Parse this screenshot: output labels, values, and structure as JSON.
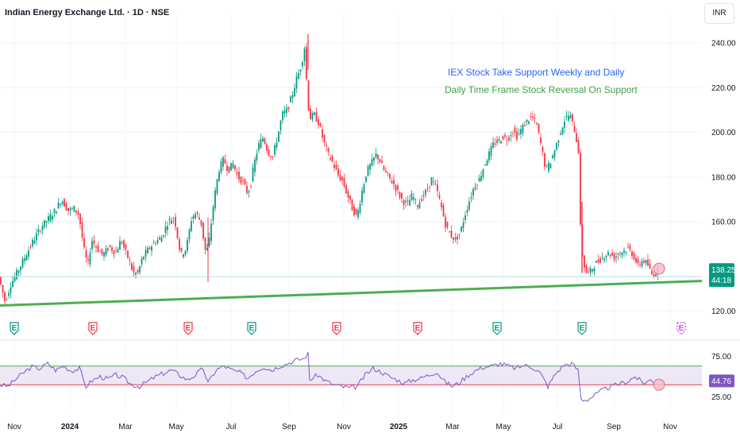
{
  "header": {
    "title": "Indian Energy Exchange Ltd. · 1D · NSE",
    "currency": "INR"
  },
  "colors": {
    "up": "#089981",
    "down": "#f23645",
    "support": "#4caf50",
    "rsi_line": "#7e57c2",
    "rsi_band": "#ede7f6",
    "rsi_upper": "#4caf50",
    "rsi_lower": "#f23645",
    "annotation_blue": "#2962ff",
    "annotation_green": "#43a047"
  },
  "annotations": {
    "line1": "IEX Stock Take Support Weekly and Daily",
    "line2": "Daily Time Frame Stock Reversal On Support"
  },
  "chart_data": {
    "type": "candlestick",
    "price_axis": {
      "min": 117,
      "max": 245,
      "ticks": [
        "240.00",
        "220.00",
        "200.00",
        "180.00",
        "160.00",
        "120.00"
      ],
      "tick_values": [
        240,
        220,
        200,
        180,
        160,
        120
      ]
    },
    "x_ticks": [
      {
        "label": "Nov",
        "bold": false
      },
      {
        "label": "2024",
        "bold": true
      },
      {
        "label": "Mar",
        "bold": false
      },
      {
        "label": "May",
        "bold": false
      },
      {
        "label": "Jul",
        "bold": false
      },
      {
        "label": "Sep",
        "bold": false
      },
      {
        "label": "Nov",
        "bold": false
      },
      {
        "label": "2025",
        "bold": true
      },
      {
        "label": "Mar",
        "bold": false
      },
      {
        "label": "May",
        "bold": false
      },
      {
        "label": "Jul",
        "bold": false
      },
      {
        "label": "Sep",
        "bold": false
      },
      {
        "label": "Nov",
        "bold": false
      }
    ],
    "last_price": {
      "value": "138.25",
      "countdown": "44:18"
    },
    "support_line": {
      "start_price": 122.5,
      "end_price": 133.5
    },
    "price_path": [
      [
        0,
        137
      ],
      [
        4,
        131
      ],
      [
        9,
        124
      ],
      [
        16,
        132
      ],
      [
        28,
        140
      ],
      [
        42,
        150
      ],
      [
        55,
        158
      ],
      [
        65,
        162
      ],
      [
        72,
        165
      ],
      [
        80,
        170
      ],
      [
        88,
        165
      ],
      [
        96,
        166
      ],
      [
        102,
        163
      ],
      [
        108,
        148
      ],
      [
        113,
        140
      ],
      [
        118,
        152
      ],
      [
        125,
        148
      ],
      [
        132,
        145
      ],
      [
        140,
        149
      ],
      [
        148,
        146
      ],
      [
        155,
        152
      ],
      [
        160,
        147
      ],
      [
        166,
        142
      ],
      [
        170,
        137
      ],
      [
        176,
        137
      ],
      [
        182,
        144
      ],
      [
        190,
        148
      ],
      [
        198,
        151
      ],
      [
        206,
        153
      ],
      [
        214,
        160
      ],
      [
        222,
        162
      ],
      [
        230,
        145
      ],
      [
        237,
        148
      ],
      [
        244,
        162
      ],
      [
        250,
        164
      ],
      [
        256,
        159
      ],
      [
        262,
        145
      ],
      [
        266,
        152
      ],
      [
        272,
        170
      ],
      [
        278,
        183
      ],
      [
        284,
        188
      ],
      [
        290,
        183
      ],
      [
        296,
        186
      ],
      [
        302,
        180
      ],
      [
        308,
        178
      ],
      [
        314,
        173
      ],
      [
        318,
        176
      ],
      [
        322,
        185
      ],
      [
        328,
        194
      ],
      [
        334,
        198
      ],
      [
        340,
        191
      ],
      [
        346,
        189
      ],
      [
        352,
        198
      ],
      [
        358,
        208
      ],
      [
        364,
        210
      ],
      [
        370,
        216
      ],
      [
        376,
        224
      ],
      [
        382,
        230
      ],
      [
        386,
        238
      ],
      [
        389,
        221
      ],
      [
        392,
        206
      ],
      [
        398,
        208
      ],
      [
        404,
        204
      ],
      [
        410,
        196
      ],
      [
        416,
        190
      ],
      [
        422,
        186
      ],
      [
        428,
        181
      ],
      [
        434,
        178
      ],
      [
        440,
        172
      ],
      [
        446,
        166
      ],
      [
        452,
        162
      ],
      [
        458,
        173
      ],
      [
        464,
        182
      ],
      [
        470,
        186
      ],
      [
        476,
        190
      ],
      [
        480,
        188
      ],
      [
        486,
        183
      ],
      [
        492,
        180
      ],
      [
        498,
        177
      ],
      [
        504,
        173
      ],
      [
        510,
        169
      ],
      [
        516,
        168
      ],
      [
        522,
        172
      ],
      [
        528,
        167
      ],
      [
        534,
        171
      ],
      [
        540,
        174
      ],
      [
        546,
        179
      ],
      [
        552,
        175
      ],
      [
        558,
        167
      ],
      [
        564,
        158
      ],
      [
        570,
        154
      ],
      [
        576,
        152
      ],
      [
        582,
        155
      ],
      [
        588,
        163
      ],
      [
        594,
        170
      ],
      [
        600,
        176
      ],
      [
        606,
        179
      ],
      [
        612,
        185
      ],
      [
        618,
        190
      ],
      [
        624,
        195
      ],
      [
        630,
        196
      ],
      [
        636,
        198
      ],
      [
        642,
        197
      ],
      [
        648,
        201
      ],
      [
        654,
        198
      ],
      [
        660,
        202
      ],
      [
        666,
        205
      ],
      [
        672,
        207
      ],
      [
        678,
        204
      ],
      [
        684,
        194
      ],
      [
        690,
        183
      ],
      [
        696,
        187
      ],
      [
        702,
        193
      ],
      [
        708,
        200
      ],
      [
        714,
        206
      ],
      [
        720,
        208
      ],
      [
        726,
        201
      ],
      [
        732,
        190
      ],
      [
        733,
        160
      ],
      [
        736,
        145
      ],
      [
        740,
        137
      ],
      [
        746,
        138
      ],
      [
        752,
        141
      ],
      [
        758,
        143
      ],
      [
        764,
        145
      ],
      [
        770,
        146
      ],
      [
        776,
        144
      ],
      [
        782,
        146
      ],
      [
        788,
        147
      ],
      [
        794,
        148
      ],
      [
        800,
        145
      ],
      [
        806,
        140
      ],
      [
        812,
        143
      ],
      [
        818,
        141
      ],
      [
        824,
        136
      ],
      [
        830,
        138
      ]
    ],
    "earnings_events": [
      {
        "x": 18,
        "color": "#089981"
      },
      {
        "x": 117,
        "color": "#f23645"
      },
      {
        "x": 237,
        "color": "#f23645"
      },
      {
        "x": 317,
        "color": "#089981"
      },
      {
        "x": 424,
        "color": "#f23645"
      },
      {
        "x": 526,
        "color": "#f23645"
      },
      {
        "x": 626,
        "color": "#089981"
      },
      {
        "x": 733,
        "color": "#089981"
      },
      {
        "x": 858,
        "color": "#e040fb",
        "future": true
      }
    ],
    "earnings_label": "E",
    "rsi": {
      "axis": {
        "min": 15,
        "max": 85,
        "ticks": [
          "75.00",
          "25.00"
        ],
        "tick_values": [
          75,
          25
        ]
      },
      "upper_band": 63,
      "lower_band": 40,
      "last_value": "44.76",
      "path": [
        [
          0,
          40
        ],
        [
          10,
          38
        ],
        [
          20,
          47
        ],
        [
          30,
          55
        ],
        [
          40,
          62
        ],
        [
          50,
          60
        ],
        [
          60,
          66
        ],
        [
          70,
          58
        ],
        [
          80,
          63
        ],
        [
          90,
          57
        ],
        [
          100,
          60
        ],
        [
          108,
          38
        ],
        [
          116,
          45
        ],
        [
          126,
          50
        ],
        [
          136,
          47
        ],
        [
          146,
          52
        ],
        [
          156,
          48
        ],
        [
          166,
          40
        ],
        [
          176,
          38
        ],
        [
          186,
          44
        ],
        [
          196,
          50
        ],
        [
          206,
          54
        ],
        [
          216,
          58
        ],
        [
          226,
          52
        ],
        [
          236,
          46
        ],
        [
          246,
          52
        ],
        [
          256,
          60
        ],
        [
          262,
          42
        ],
        [
          272,
          58
        ],
        [
          282,
          63
        ],
        [
          292,
          58
        ],
        [
          302,
          55
        ],
        [
          312,
          48
        ],
        [
          322,
          57
        ],
        [
          332,
          62
        ],
        [
          342,
          58
        ],
        [
          352,
          63
        ],
        [
          362,
          66
        ],
        [
          372,
          70
        ],
        [
          382,
          72
        ],
        [
          388,
          78
        ],
        [
          390,
          46
        ],
        [
          400,
          52
        ],
        [
          410,
          45
        ],
        [
          420,
          40
        ],
        [
          430,
          38
        ],
        [
          440,
          36
        ],
        [
          450,
          38
        ],
        [
          460,
          52
        ],
        [
          470,
          60
        ],
        [
          480,
          56
        ],
        [
          490,
          50
        ],
        [
          500,
          46
        ],
        [
          510,
          42
        ],
        [
          520,
          46
        ],
        [
          530,
          48
        ],
        [
          540,
          52
        ],
        [
          550,
          56
        ],
        [
          560,
          44
        ],
        [
          570,
          38
        ],
        [
          580,
          44
        ],
        [
          590,
          52
        ],
        [
          600,
          58
        ],
        [
          610,
          62
        ],
        [
          620,
          63
        ],
        [
          630,
          66
        ],
        [
          640,
          63
        ],
        [
          650,
          60
        ],
        [
          660,
          64
        ],
        [
          670,
          62
        ],
        [
          680,
          55
        ],
        [
          690,
          38
        ],
        [
          700,
          54
        ],
        [
          710,
          64
        ],
        [
          720,
          66
        ],
        [
          728,
          58
        ],
        [
          732,
          22
        ],
        [
          740,
          22
        ],
        [
          750,
          28
        ],
        [
          760,
          34
        ],
        [
          770,
          38
        ],
        [
          780,
          41
        ],
        [
          790,
          44
        ],
        [
          800,
          50
        ],
        [
          810,
          42
        ],
        [
          820,
          46
        ],
        [
          830,
          40
        ]
      ]
    }
  }
}
